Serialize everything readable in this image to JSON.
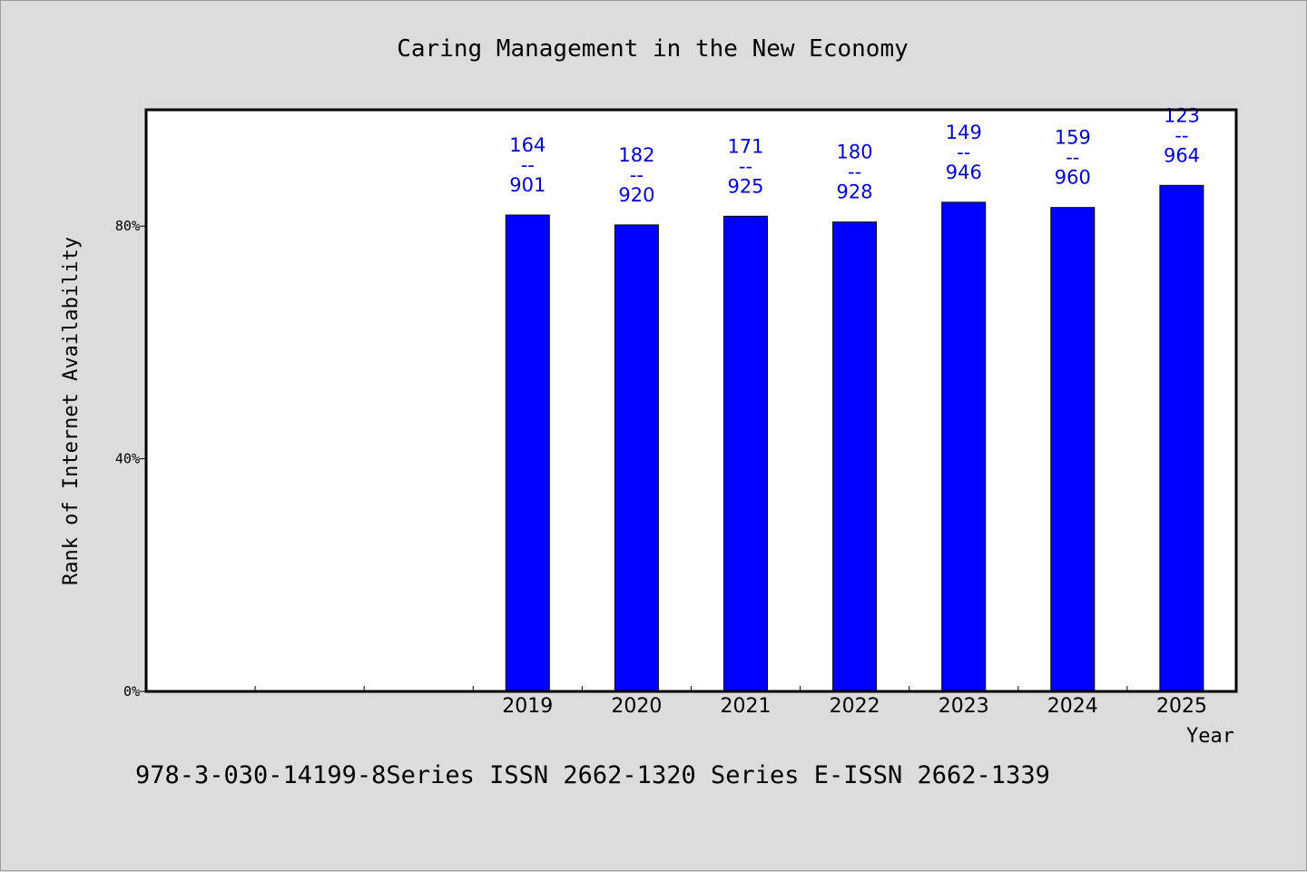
{
  "chart_data": {
    "type": "bar",
    "title": "Caring Management in the New Economy",
    "xlabel": "Year",
    "ylabel": "Rank of Internet Availability",
    "categories": [
      "",
      "",
      "",
      "2019",
      "2020",
      "2021",
      "2022",
      "2023",
      "2024",
      "2025"
    ],
    "series": [
      {
        "values": [
          null,
          null,
          null,
          81.9,
          80.2,
          81.7,
          80.7,
          84.1,
          83.2,
          87.0
        ],
        "labels": [
          null,
          null,
          null,
          [
            "164",
            "--",
            "901"
          ],
          [
            "182",
            "--",
            "920"
          ],
          [
            "171",
            "--",
            "925"
          ],
          [
            "180",
            "--",
            "928"
          ],
          [
            "149",
            "--",
            "946"
          ],
          [
            "159",
            "--",
            "960"
          ],
          [
            "123",
            "--",
            "964"
          ]
        ]
      }
    ],
    "yticks": [
      {
        "value": 0,
        "label": "0%"
      },
      {
        "value": 40,
        "label": "40%"
      },
      {
        "value": 80,
        "label": "80%"
      }
    ],
    "ylim": [
      0,
      100
    ],
    "grid": false,
    "bar_color": "#0000ff",
    "label_color": "#0000cc"
  },
  "footer": "978-3-030-14199-8Series ISSN 2662-1320 Series E-ISSN 2662-1339"
}
